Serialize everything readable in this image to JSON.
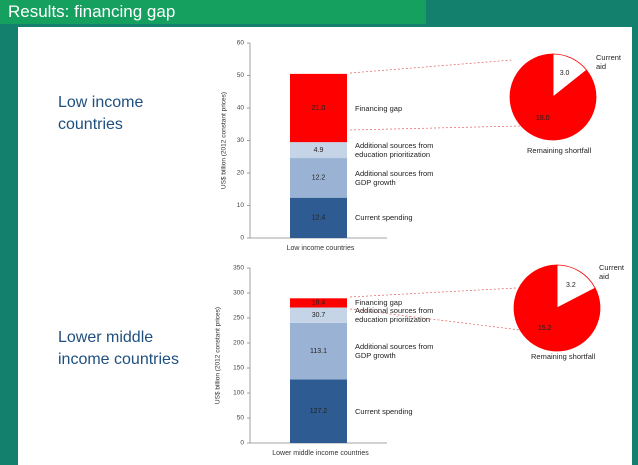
{
  "header": {
    "title": "Results: financing gap"
  },
  "labels": [
    "Low income countries",
    "Lower middle income countries"
  ],
  "chart_data": [
    {
      "type": "bar",
      "stacked": true,
      "ylabel": "US$ billion (2012 constant prices)",
      "categories": [
        "Low income countries"
      ],
      "series": [
        {
          "name": "Current spending",
          "color": "#2e5c92",
          "values": [
            12.4
          ]
        },
        {
          "name": "Additional sources from GDP growth",
          "color": "#9ab3d5",
          "values": [
            12.2
          ]
        },
        {
          "name": "Additional sources from education prioritization",
          "color": "#c6d4e8",
          "values": [
            4.9
          ]
        },
        {
          "name": "Financing gap",
          "color": "#ff0000",
          "values": [
            21.0
          ],
          "value_labels": [
            "21.0"
          ]
        }
      ],
      "ylim": [
        0,
        60
      ],
      "yticks": [
        0,
        10,
        20,
        30,
        40,
        50,
        60
      ]
    },
    {
      "type": "pie",
      "categories": [
        "Current aid",
        "Remaining shortfall"
      ],
      "values": [
        3.0,
        18.0
      ],
      "value_labels": [
        "3.0",
        "18.0"
      ],
      "colors": [
        "#ffffff",
        "#ff0000"
      ]
    },
    {
      "type": "bar",
      "stacked": true,
      "ylabel": "US$ billion (2012 constant prices)",
      "categories": [
        "Lower middle income countries"
      ],
      "series": [
        {
          "name": "Current spending",
          "color": "#2e5c92",
          "values": [
            127.2
          ]
        },
        {
          "name": "Additional sources from GDP growth",
          "color": "#9ab3d5",
          "values": [
            113.1
          ]
        },
        {
          "name": "Additional sources from education prioritization",
          "color": "#c6d4e8",
          "values": [
            30.7
          ]
        },
        {
          "name": "Financing gap",
          "color": "#ff0000",
          "values": [
            18.4
          ]
        }
      ],
      "ylim": [
        0,
        350
      ],
      "yticks": [
        0,
        50,
        100,
        150,
        200,
        250,
        300,
        350
      ]
    },
    {
      "type": "pie",
      "categories": [
        "Current aid",
        "Remaining shortfall"
      ],
      "values": [
        3.2,
        15.2
      ],
      "colors": [
        "#ffffff",
        "#ff0000"
      ]
    }
  ]
}
